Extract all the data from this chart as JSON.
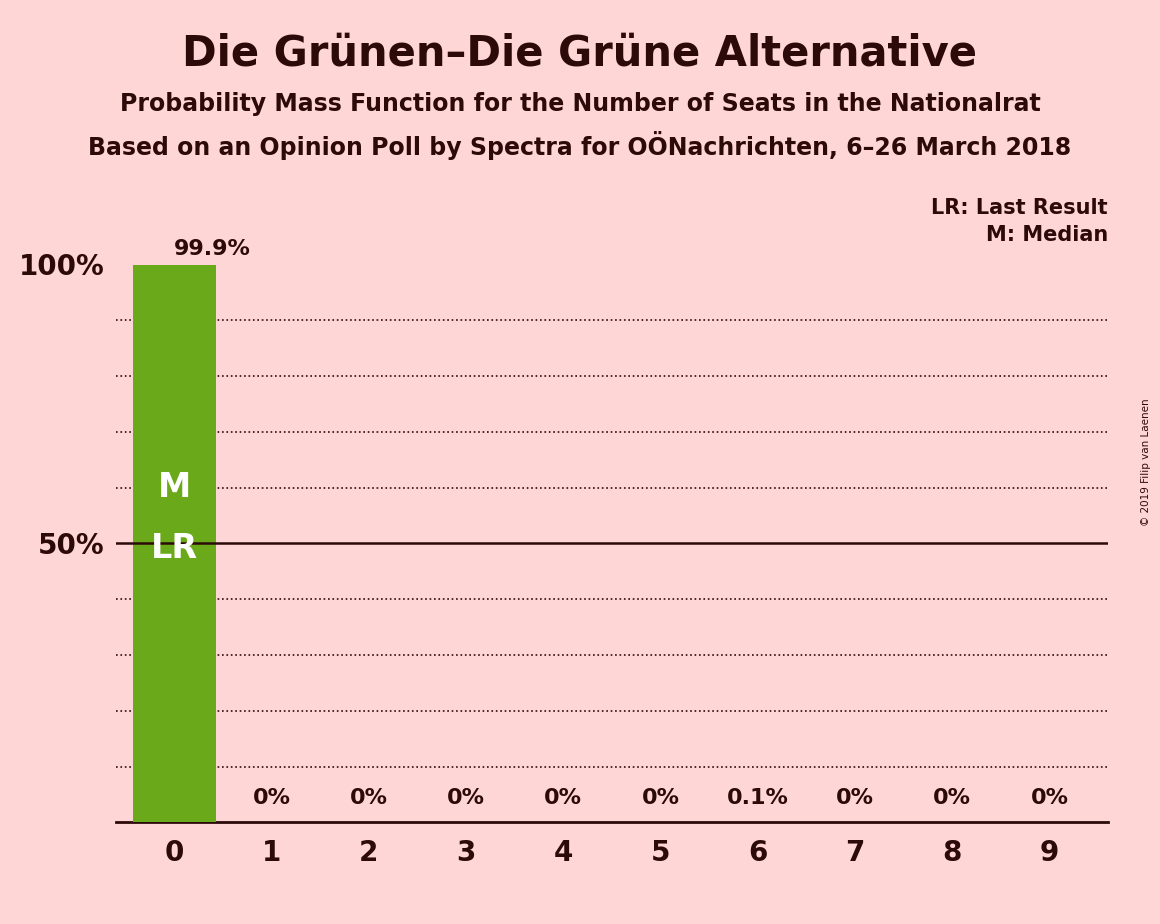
{
  "title": "Die Grünen–Die Grüne Alternative",
  "subtitle1": "Probability Mass Function for the Number of Seats in the Nationalrat",
  "subtitle2": "Based on an Opinion Poll by Spectra for OÖNachrichten, 6–26 March 2018",
  "copyright": "© 2019 Filip van Laenen",
  "categories": [
    0,
    1,
    2,
    3,
    4,
    5,
    6,
    7,
    8,
    9
  ],
  "values": [
    99.9,
    0.0,
    0.0,
    0.0,
    0.0,
    0.0,
    0.1,
    0.0,
    0.0,
    0.0
  ],
  "bar_labels": [
    "99.9%",
    "0%",
    "0%",
    "0%",
    "0%",
    "0%",
    "0.1%",
    "0%",
    "0%",
    "0%"
  ],
  "bar_color_main": "#6aaa1a",
  "background_color": "#ffd6d6",
  "text_color": "#2d0a0a",
  "bar_label_color_main": "#ffffff",
  "bar_label_color_rest": "#2d0a0a",
  "ylim": [
    0,
    106
  ],
  "legend_lr": "LR: Last Result",
  "legend_m": "M: Median",
  "title_fontsize": 30,
  "subtitle_fontsize": 17,
  "axis_fontsize": 20,
  "bar_label_fontsize": 16,
  "dotted_lines": [
    10,
    20,
    30,
    40,
    60,
    70,
    80,
    90
  ],
  "solid_line": 50,
  "top_label_99": "99.9%",
  "M_label": "M",
  "LR_label": "LR"
}
